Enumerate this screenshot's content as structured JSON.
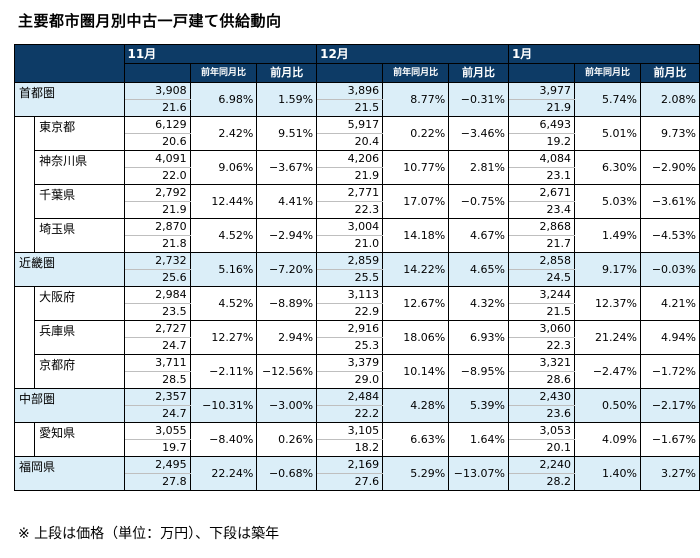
{
  "title": "主要都市圏月別中古一戸建て供給動向",
  "note": "※ 上段は価格（単位：万円）、下段は築年",
  "columns": {
    "months": [
      "11月",
      "12月",
      "1月"
    ],
    "yoy": "前年同月比",
    "mom": "前月比"
  },
  "rows": [
    {
      "name": "首都圏",
      "level": 0,
      "shade": true,
      "data": [
        [
          "3,908",
          "21.6",
          "6.98%",
          "1.59%"
        ],
        [
          "3,896",
          "21.5",
          "8.77%",
          "−0.31%"
        ],
        [
          "3,977",
          "21.9",
          "5.74%",
          "2.08%"
        ]
      ]
    },
    {
      "name": "東京都",
      "level": 1,
      "shade": false,
      "data": [
        [
          "6,129",
          "20.6",
          "2.42%",
          "9.51%"
        ],
        [
          "5,917",
          "20.4",
          "0.22%",
          "−3.46%"
        ],
        [
          "6,493",
          "19.2",
          "5.01%",
          "9.73%"
        ]
      ]
    },
    {
      "name": "神奈川県",
      "level": 1,
      "shade": false,
      "data": [
        [
          "4,091",
          "22.0",
          "9.06%",
          "−3.67%"
        ],
        [
          "4,206",
          "21.9",
          "10.77%",
          "2.81%"
        ],
        [
          "4,084",
          "23.1",
          "6.30%",
          "−2.90%"
        ]
      ]
    },
    {
      "name": "千葉県",
      "level": 1,
      "shade": false,
      "data": [
        [
          "2,792",
          "21.9",
          "12.44%",
          "4.41%"
        ],
        [
          "2,771",
          "22.3",
          "17.07%",
          "−0.75%"
        ],
        [
          "2,671",
          "23.4",
          "5.03%",
          "−3.61%"
        ]
      ]
    },
    {
      "name": "埼玉県",
      "level": 1,
      "shade": false,
      "data": [
        [
          "2,870",
          "21.8",
          "4.52%",
          "−2.94%"
        ],
        [
          "3,004",
          "21.0",
          "14.18%",
          "4.67%"
        ],
        [
          "2,868",
          "21.7",
          "1.49%",
          "−4.53%"
        ]
      ]
    },
    {
      "name": "近畿圏",
      "level": 0,
      "shade": true,
      "data": [
        [
          "2,732",
          "25.6",
          "5.16%",
          "−7.20%"
        ],
        [
          "2,859",
          "25.5",
          "14.22%",
          "4.65%"
        ],
        [
          "2,858",
          "24.5",
          "9.17%",
          "−0.03%"
        ]
      ]
    },
    {
      "name": "大阪府",
      "level": 1,
      "shade": false,
      "data": [
        [
          "2,984",
          "23.5",
          "4.52%",
          "−8.89%"
        ],
        [
          "3,113",
          "22.9",
          "12.67%",
          "4.32%"
        ],
        [
          "3,244",
          "21.5",
          "12.37%",
          "4.21%"
        ]
      ]
    },
    {
      "name": "兵庫県",
      "level": 1,
      "shade": false,
      "data": [
        [
          "2,727",
          "24.7",
          "12.27%",
          "2.94%"
        ],
        [
          "2,916",
          "25.3",
          "18.06%",
          "6.93%"
        ],
        [
          "3,060",
          "22.3",
          "21.24%",
          "4.94%"
        ]
      ]
    },
    {
      "name": "京都府",
      "level": 1,
      "shade": false,
      "data": [
        [
          "3,711",
          "28.5",
          "−2.11%",
          "−12.56%"
        ],
        [
          "3,379",
          "29.0",
          "10.14%",
          "−8.95%"
        ],
        [
          "3,321",
          "28.6",
          "−2.47%",
          "−1.72%"
        ]
      ]
    },
    {
      "name": "中部圏",
      "level": 0,
      "shade": true,
      "data": [
        [
          "2,357",
          "24.7",
          "−10.31%",
          "−3.00%"
        ],
        [
          "2,484",
          "22.2",
          "4.28%",
          "5.39%"
        ],
        [
          "2,430",
          "23.6",
          "0.50%",
          "−2.17%"
        ]
      ]
    },
    {
      "name": "愛知県",
      "level": 1,
      "shade": false,
      "data": [
        [
          "3,055",
          "19.7",
          "−8.40%",
          "0.26%"
        ],
        [
          "3,105",
          "18.2",
          "6.63%",
          "1.64%"
        ],
        [
          "3,053",
          "20.1",
          "4.09%",
          "−1.67%"
        ]
      ]
    },
    {
      "name": "福岡県",
      "level": 0,
      "shade": true,
      "data": [
        [
          "2,495",
          "27.8",
          "22.24%",
          "−0.68%"
        ],
        [
          "2,169",
          "27.6",
          "5.29%",
          "−13.07%"
        ],
        [
          "2,240",
          "28.2",
          "1.40%",
          "3.27%"
        ]
      ]
    }
  ],
  "colors": {
    "header": "#0d3b66",
    "shade": "#dbeef8"
  }
}
